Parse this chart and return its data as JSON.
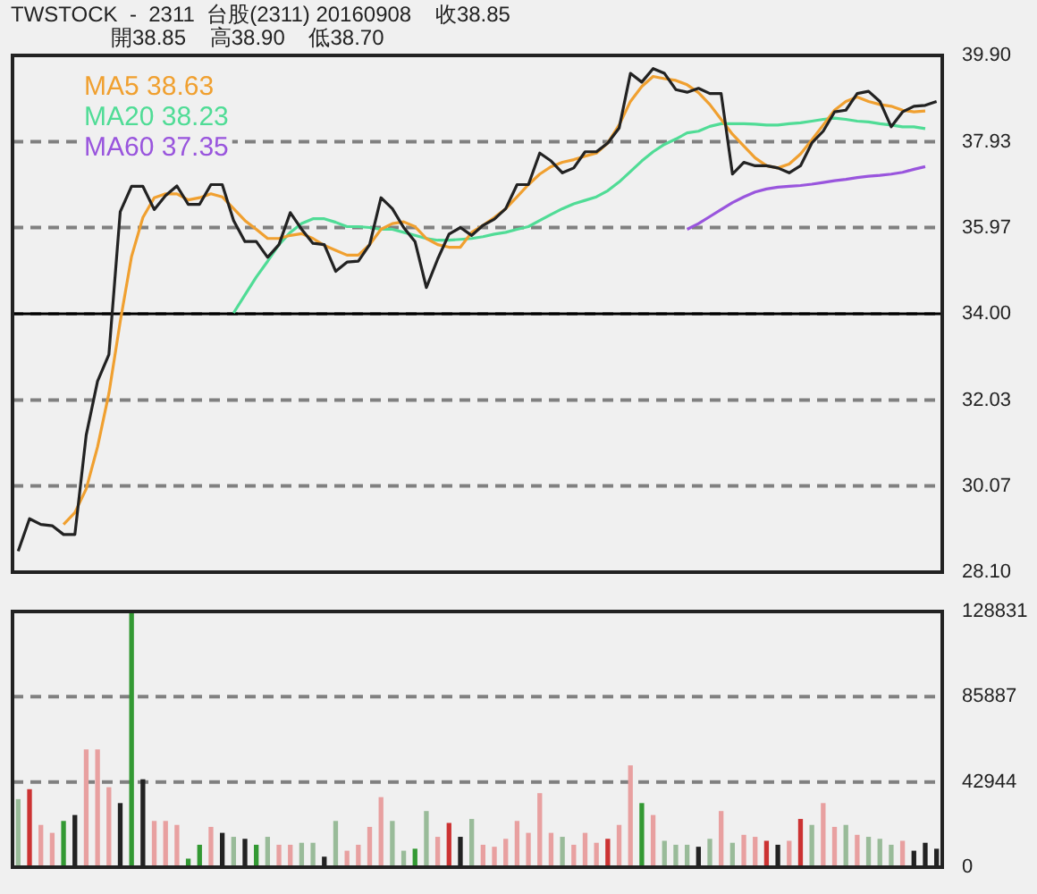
{
  "chart_data": [
    {
      "type": "line",
      "title": "TWSTOCK  -  2311  台股(2311) 20160908    收38.85",
      "subtitle": "開38.85    高38.90    低38.70",
      "categories": [
        null,
        null,
        null,
        null,
        null,
        null,
        null,
        null,
        null,
        null,
        null,
        null,
        null,
        null,
        null,
        null,
        null,
        null,
        null,
        null,
        null,
        null,
        null,
        null,
        null,
        null,
        null,
        null,
        null,
        null,
        null,
        null,
        null,
        null,
        null,
        null,
        null,
        null,
        null,
        null,
        null,
        null,
        null,
        null,
        null,
        null,
        null,
        null,
        null,
        null,
        null,
        null,
        null,
        null,
        null,
        null,
        null,
        null,
        null,
        null,
        null,
        null,
        null,
        null,
        null,
        null,
        null,
        null,
        null,
        null,
        null,
        null,
        null,
        null,
        null,
        null,
        null,
        null,
        null,
        null,
        null,
        null
      ],
      "series": [
        {
          "color": "#222222",
          "values": [
            28.58,
            29.32,
            29.19,
            29.16,
            28.96,
            28.96,
            31.23,
            32.46,
            33.07,
            36.33,
            36.91,
            36.91,
            36.38,
            36.7,
            36.92,
            36.5,
            36.5,
            36.95,
            36.95,
            36.13,
            35.65,
            35.65,
            35.29,
            35.58,
            36.31,
            35.93,
            35.61,
            35.58,
            34.97,
            35.18,
            35.2,
            35.58,
            36.65,
            36.4,
            35.97,
            35.65,
            34.6,
            35.25,
            35.82,
            35.97,
            35.79,
            36.02,
            36.16,
            36.4,
            36.95,
            36.95,
            37.67,
            37.49,
            37.22,
            37.33,
            37.7,
            37.7,
            37.9,
            38.24,
            39.49,
            39.29,
            39.6,
            39.49,
            39.12,
            39.06,
            39.15,
            39.03,
            39.03,
            37.19,
            37.46,
            37.38,
            37.38,
            37.33,
            37.22,
            37.38,
            37.9,
            38.17,
            38.61,
            38.65,
            39.03,
            39.08,
            38.85,
            38.27,
            38.61,
            38.74,
            38.76,
            38.85
          ]
        },
        {
          "name": "MA5 38.63",
          "color": "#f0a030",
          "values": [
            null,
            null,
            null,
            null,
            29.19,
            29.46,
            30.0,
            30.96,
            32.18,
            33.82,
            35.31,
            36.2,
            36.65,
            36.74,
            36.74,
            36.6,
            36.65,
            36.74,
            36.67,
            36.4,
            36.13,
            35.93,
            35.72,
            35.72,
            35.79,
            35.83,
            35.72,
            35.56,
            35.45,
            35.34,
            35.34,
            35.58,
            35.93,
            36.06,
            36.1,
            35.99,
            35.72,
            35.58,
            35.52,
            35.52,
            35.86,
            36.02,
            36.2,
            36.4,
            36.67,
            36.95,
            37.19,
            37.36,
            37.46,
            37.52,
            37.6,
            37.67,
            37.9,
            38.31,
            38.85,
            39.19,
            39.42,
            39.37,
            39.33,
            39.23,
            39.05,
            38.78,
            38.44,
            38.1,
            37.83,
            37.56,
            37.38,
            37.33,
            37.42,
            37.65,
            37.97,
            38.31,
            38.65,
            38.85,
            38.95,
            38.85,
            38.78,
            38.74,
            38.65,
            38.61,
            38.63,
            null
          ]
        },
        {
          "name": "MA20 38.23",
          "color": "#50dc96",
          "values": [
            null,
            null,
            null,
            null,
            null,
            null,
            null,
            null,
            null,
            null,
            null,
            null,
            null,
            null,
            null,
            null,
            null,
            null,
            null,
            34.02,
            34.43,
            34.84,
            35.2,
            35.58,
            35.86,
            36.06,
            36.17,
            36.17,
            36.09,
            35.99,
            35.99,
            35.97,
            35.93,
            35.93,
            35.86,
            35.79,
            35.72,
            35.68,
            35.68,
            35.7,
            35.72,
            35.76,
            35.82,
            35.86,
            35.93,
            35.99,
            36.13,
            36.27,
            36.4,
            36.51,
            36.59,
            36.67,
            36.81,
            37.01,
            37.25,
            37.49,
            37.7,
            37.87,
            37.99,
            38.13,
            38.17,
            38.28,
            38.34,
            38.34,
            38.34,
            38.33,
            38.31,
            38.31,
            38.34,
            38.36,
            38.4,
            38.44,
            38.47,
            38.44,
            38.4,
            38.38,
            38.34,
            38.31,
            38.27,
            38.27,
            38.23,
            null
          ]
        },
        {
          "name": "MA60 37.35",
          "color": "#9955dd",
          "values": [
            null,
            null,
            null,
            null,
            null,
            null,
            null,
            null,
            null,
            null,
            null,
            null,
            null,
            null,
            null,
            null,
            null,
            null,
            null,
            null,
            null,
            null,
            null,
            null,
            null,
            null,
            null,
            null,
            null,
            null,
            null,
            null,
            null,
            null,
            null,
            null,
            null,
            null,
            null,
            null,
            null,
            null,
            null,
            null,
            null,
            null,
            null,
            null,
            null,
            null,
            null,
            null,
            null,
            null,
            null,
            null,
            null,
            null,
            null,
            35.93,
            36.06,
            36.22,
            36.38,
            36.54,
            36.67,
            36.78,
            36.85,
            36.89,
            36.91,
            36.93,
            36.96,
            37.0,
            37.04,
            37.07,
            37.11,
            37.14,
            37.16,
            37.19,
            37.23,
            37.3,
            37.36,
            null
          ]
        }
      ],
      "ylim": [
        28.1,
        39.9
      ],
      "yticks": [
        {
          "value": 39.9,
          "label": "39.90"
        },
        {
          "value": 37.93,
          "label": "37.93"
        },
        {
          "value": 35.97,
          "label": "35.97"
        },
        {
          "value": 34,
          "label": "34.00"
        },
        {
          "value": 32.03,
          "label": "32.03"
        },
        {
          "value": 30.07,
          "label": "30.07"
        },
        {
          "value": 28.1,
          "label": "28.10"
        }
      ],
      "grid": "y",
      "legend": "top left",
      "tick_labels": "y",
      "ref_lines": [
        {
          "axis": "y",
          "value": 34,
          "color": "#000000"
        }
      ]
    },
    {
      "type": "bar",
      "categories": [
        null,
        null,
        null,
        null,
        null,
        null,
        null,
        null,
        null,
        null,
        null,
        null,
        null,
        null,
        null,
        null,
        null,
        null,
        null,
        null,
        null,
        null,
        null,
        null,
        null,
        null,
        null,
        null,
        null,
        null,
        null,
        null,
        null,
        null,
        null,
        null,
        null,
        null,
        null,
        null,
        null,
        null,
        null,
        null,
        null,
        null,
        null,
        null,
        null,
        null,
        null,
        null,
        null,
        null,
        null,
        null,
        null,
        null,
        null,
        null,
        null,
        null,
        null,
        null,
        null,
        null,
        null,
        null,
        null,
        null,
        null,
        null,
        null,
        null,
        null,
        null,
        null,
        null,
        null,
        null,
        null,
        null
      ],
      "values": [
        34000,
        39000,
        21000,
        17000,
        23000,
        26000,
        59000,
        59000,
        40000,
        32000,
        128831,
        44000,
        23000,
        23000,
        21000,
        4000,
        11000,
        20000,
        17000,
        15000,
        14000,
        11000,
        15000,
        11000,
        11000,
        12000,
        12000,
        5000,
        23000,
        8000,
        11000,
        20000,
        35000,
        23000,
        8000,
        9000,
        28000,
        15000,
        22000,
        15000,
        24000,
        11000,
        10000,
        14000,
        23000,
        17000,
        37000,
        17000,
        15000,
        11000,
        17000,
        12000,
        14000,
        21000,
        51000,
        32000,
        26000,
        13000,
        11000,
        11000,
        10000,
        14000,
        28000,
        12000,
        16000,
        15000,
        13000,
        11000,
        13000,
        24000,
        21000,
        32000,
        20000,
        21000,
        16000,
        15000,
        14000,
        11000,
        13000,
        8000,
        12000,
        9000
      ],
      "colors": [
        "#99bb99",
        "#cc3333",
        "#e8a0a0",
        "#e8a0a0",
        "#339933",
        "#222222",
        "#e8a0a0",
        "#e8a0a0",
        "#e8a0a0",
        "#222222",
        "#339933",
        "#222222",
        "#e8a0a0",
        "#e8a0a0",
        "#e8a0a0",
        "#339933",
        "#339933",
        "#e8a0a0",
        "#222222",
        "#99bb99",
        "#222222",
        "#339933",
        "#99bb99",
        "#e8a0a0",
        "#e8a0a0",
        "#99bb99",
        "#99bb99",
        "#222222",
        "#99bb99",
        "#e8a0a0",
        "#e8a0a0",
        "#e8a0a0",
        "#e8a0a0",
        "#99bb99",
        "#99bb99",
        "#339933",
        "#99bb99",
        "#e8a0a0",
        "#cc3333",
        "#222222",
        "#99bb99",
        "#e8a0a0",
        "#e8a0a0",
        "#e8a0a0",
        "#e8a0a0",
        "#e8a0a0",
        "#e8a0a0",
        "#e8a0a0",
        "#99bb99",
        "#e8a0a0",
        "#e8a0a0",
        "#e8a0a0",
        "#cc3333",
        "#e8a0a0",
        "#e8a0a0",
        "#339933",
        "#e8a0a0",
        "#99bb99",
        "#99bb99",
        "#99bb99",
        "#222222",
        "#99bb99",
        "#e8a0a0",
        "#99bb99",
        "#e8a0a0",
        "#e8a0a0",
        "#cc3333",
        "#222222",
        "#e8a0a0",
        "#cc3333",
        "#99bb99",
        "#e8a0a0",
        "#e8a0a0",
        "#99bb99",
        "#e8a0a0",
        "#99bb99",
        "#99bb99",
        "#99bb99",
        "#e8a0a0",
        "#222222",
        "#222222",
        "#222222"
      ],
      "ylim": [
        0,
        128831
      ],
      "yticks": [
        0,
        42944,
        85887,
        128831
      ],
      "grid": "y",
      "tick_labels": "y"
    }
  ]
}
